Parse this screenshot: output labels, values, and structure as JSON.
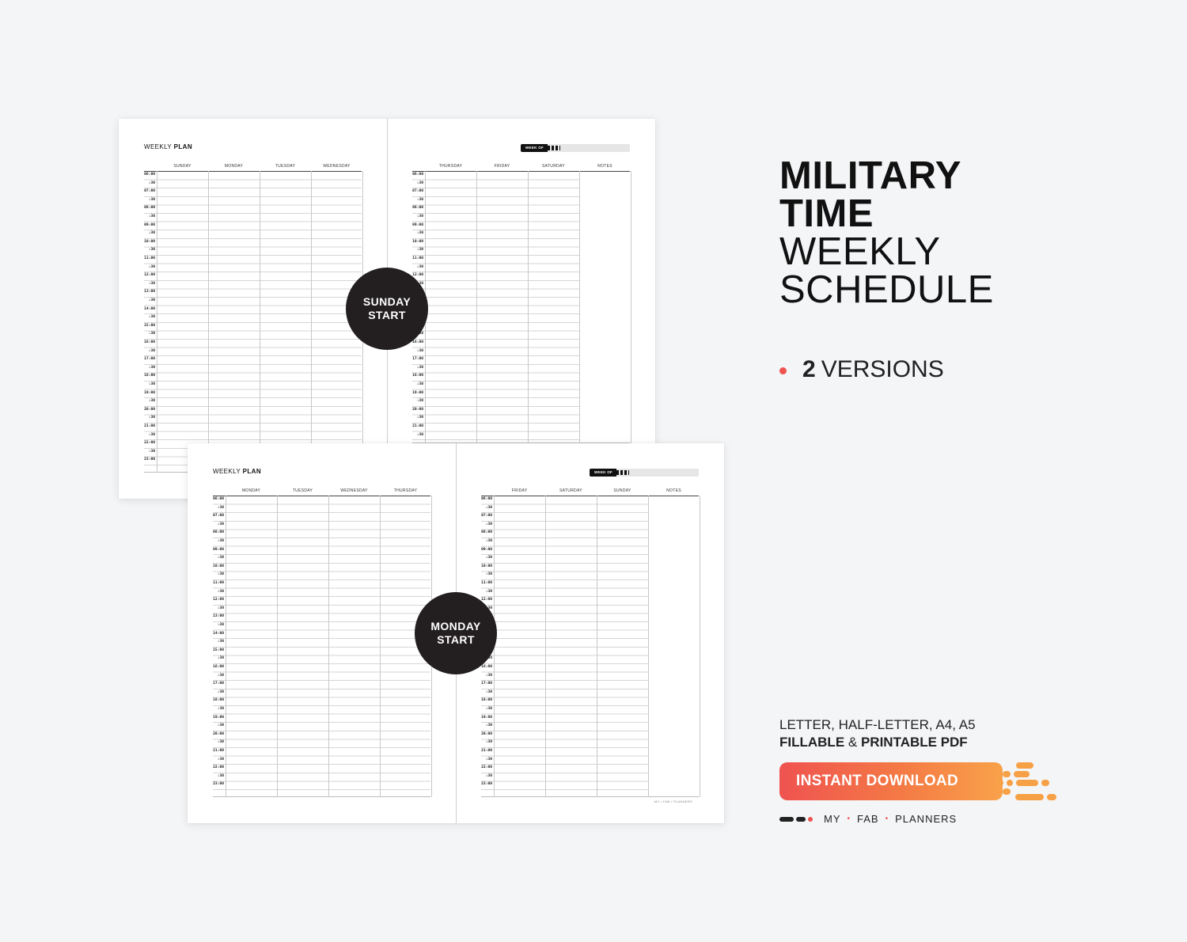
{
  "sheet_top": {
    "title_light": "WEEKLY",
    "title_bold": "PLAN",
    "badge_line1": "SUNDAY",
    "badge_line2": "START",
    "week_of": "WEEK OF",
    "left_days": [
      "SUNDAY",
      "MONDAY",
      "TUESDAY",
      "WEDNESDAY"
    ],
    "right_days": [
      "THURSDAY",
      "FRIDAY",
      "SATURDAY",
      "NOTES"
    ]
  },
  "sheet_bottom": {
    "title_light": "WEEKLY",
    "title_bold": "PLAN",
    "badge_line1": "MONDAY",
    "badge_line2": "START",
    "week_of": "WEEK OF",
    "left_days": [
      "MONDAY",
      "TUESDAY",
      "WEDNESDAY",
      "THURSDAY"
    ],
    "right_days": [
      "FRIDAY",
      "SATURDAY",
      "SUNDAY",
      "NOTES"
    ],
    "footer": "MY • FAB • PLANNERS"
  },
  "time_labels": [
    "06:00",
    ":30",
    "07:00",
    ":30",
    "08:00",
    ":30",
    "09:00",
    ":30",
    "10:00",
    ":30",
    "11:00",
    ":30",
    "12:00",
    ":30",
    "13:00",
    ":30",
    "14:00",
    ":30",
    "15:00",
    ":30",
    "16:00",
    ":30",
    "17:00",
    ":30",
    "18:00",
    ":30",
    "19:00",
    ":30",
    "20:00",
    ":30",
    "21:00",
    ":30",
    "22:00",
    ":30",
    "23:00",
    ":30"
  ],
  "headline": {
    "line1": "MILITARY",
    "line2": "TIME",
    "line3": "WEEKLY",
    "line4": "SCHEDULE"
  },
  "versions": {
    "count": "2",
    "label": "VERSIONS"
  },
  "sizes": "LETTER, HALF-LETTER, A4, A5",
  "format": {
    "fillable": "FILLABLE",
    "amp": " & ",
    "printable": "PRINTABLE PDF"
  },
  "cta": "INSTANT DOWNLOAD",
  "brand": {
    "my": "MY",
    "fab": "FAB",
    "planners": "PLANNERS",
    "sep": "•"
  },
  "colors": {
    "accent_red": "#ef5350",
    "accent_orange": "#f9a24a",
    "badge": "#231f20"
  }
}
